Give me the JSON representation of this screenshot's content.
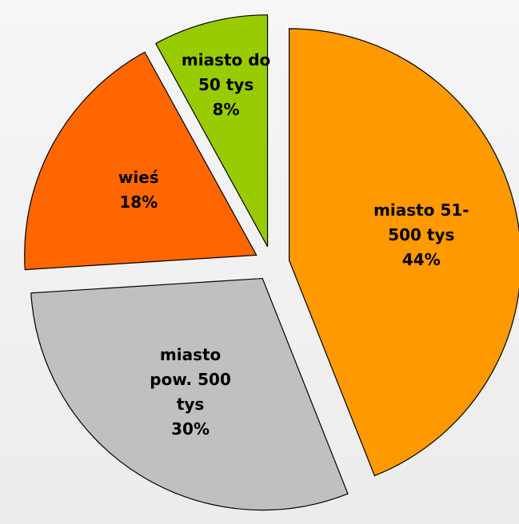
{
  "chart_data": {
    "type": "pie",
    "categories": [
      "miasto 51-500 tys",
      "miasto pow. 500 tys",
      "wieś",
      "miasto do 50 tys"
    ],
    "values": [
      44,
      30,
      18,
      8
    ],
    "value_labels": [
      "44%",
      "30%",
      "18%",
      "8%"
    ],
    "colors": [
      "#ff9900",
      "#c0c0c0",
      "#ff6600",
      "#99cc00"
    ],
    "exploded": true
  }
}
